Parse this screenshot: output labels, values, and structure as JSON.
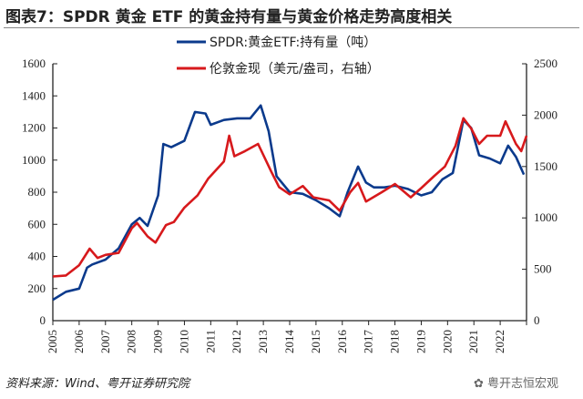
{
  "title": "图表7：SPDR 黄金 ETF 的黄金持有量与黄金价格走势高度相关",
  "source": "资料来源：Wind、粤开证券研究院",
  "watermark": "粤开志恒宏观",
  "chart_data": {
    "type": "line",
    "xlim": [
      2005,
      2023
    ],
    "x_ticks": [
      "2005",
      "2006",
      "2007",
      "2008",
      "2009",
      "2010",
      "2011",
      "2012",
      "2013",
      "2014",
      "2015",
      "2016",
      "2017",
      "2018",
      "2019",
      "2020",
      "2021",
      "2022"
    ],
    "left_axis": {
      "ylim": [
        0,
        1600
      ],
      "ticks": [
        "0",
        "200",
        "400",
        "600",
        "800",
        "1000",
        "1200",
        "1400",
        "1600"
      ]
    },
    "right_axis": {
      "ylim": [
        0,
        2500
      ],
      "ticks": [
        "0",
        "500",
        "1000",
        "1500",
        "2000",
        "2500"
      ]
    },
    "grid": false,
    "legend_placement": "top-center",
    "series": [
      {
        "name": "SPDR:黄金ETF:持有量（吨）",
        "axis": "left",
        "color": "#0b3a8c",
        "x": [
          2005.0,
          2005.5,
          2006.0,
          2006.3,
          2006.5,
          2007.0,
          2007.5,
          2008.0,
          2008.3,
          2008.6,
          2009.0,
          2009.2,
          2009.5,
          2010.0,
          2010.4,
          2010.8,
          2011.0,
          2011.5,
          2012.0,
          2012.5,
          2012.9,
          2013.2,
          2013.5,
          2014.0,
          2014.5,
          2015.0,
          2015.5,
          2015.9,
          2016.2,
          2016.6,
          2016.9,
          2017.2,
          2017.6,
          2018.0,
          2018.5,
          2019.0,
          2019.4,
          2019.8,
          2020.2,
          2020.6,
          2020.9,
          2021.2,
          2021.6,
          2022.0,
          2022.3,
          2022.6,
          2022.9
        ],
        "y": [
          130,
          180,
          200,
          330,
          350,
          380,
          450,
          600,
          640,
          590,
          780,
          1100,
          1080,
          1120,
          1300,
          1290,
          1220,
          1250,
          1260,
          1260,
          1340,
          1180,
          900,
          800,
          790,
          750,
          700,
          650,
          800,
          960,
          860,
          830,
          830,
          840,
          820,
          780,
          800,
          880,
          920,
          1250,
          1200,
          1030,
          1010,
          980,
          1090,
          1020,
          910
        ]
      },
      {
        "name": "伦敦金现（美元/盎司，右轴）",
        "axis": "right",
        "color": "#d7191c",
        "x": [
          2005.0,
          2005.5,
          2006.0,
          2006.4,
          2006.7,
          2007.0,
          2007.5,
          2008.0,
          2008.2,
          2008.6,
          2008.9,
          2009.3,
          2009.6,
          2010.0,
          2010.5,
          2010.9,
          2011.5,
          2011.7,
          2011.9,
          2012.3,
          2012.8,
          2013.3,
          2013.6,
          2014.0,
          2014.5,
          2014.9,
          2015.5,
          2015.9,
          2016.3,
          2016.6,
          2016.9,
          2017.5,
          2018.0,
          2018.6,
          2019.0,
          2019.5,
          2019.9,
          2020.3,
          2020.6,
          2020.9,
          2021.2,
          2021.5,
          2022.0,
          2022.2,
          2022.6,
          2022.8,
          2023.0
        ],
        "y": [
          430,
          440,
          540,
          700,
          610,
          640,
          660,
          900,
          950,
          820,
          760,
          930,
          960,
          1100,
          1220,
          1380,
          1550,
          1800,
          1600,
          1650,
          1720,
          1450,
          1300,
          1230,
          1310,
          1200,
          1170,
          1070,
          1250,
          1340,
          1160,
          1250,
          1330,
          1200,
          1290,
          1410,
          1500,
          1700,
          1970,
          1870,
          1720,
          1800,
          1800,
          1940,
          1720,
          1650,
          1800
        ]
      }
    ]
  }
}
